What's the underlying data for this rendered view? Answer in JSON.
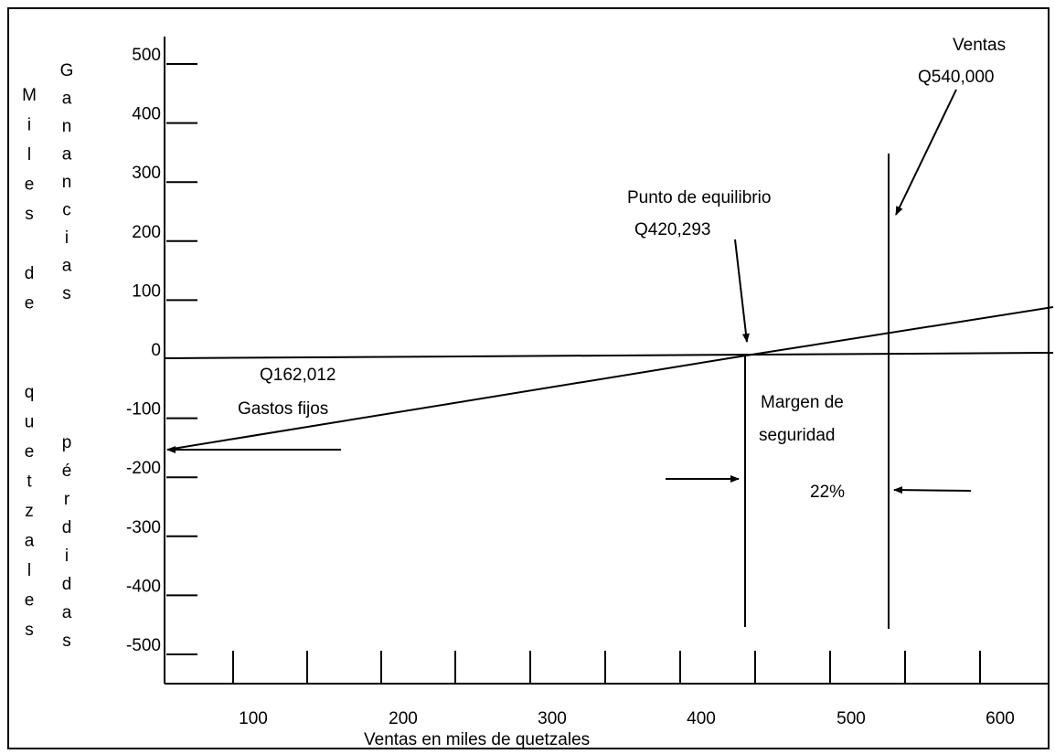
{
  "chart_data": {
    "type": "line",
    "title": "",
    "xlabel": "Ventas en miles de quetzales",
    "ylabel_outer": [
      "M",
      "i",
      "l",
      "e",
      "s",
      "",
      "d",
      "e",
      "",
      "",
      "q",
      "u",
      "e",
      "t",
      "z",
      "a",
      "l",
      "e",
      "s"
    ],
    "ylabel_inner_top": [
      "G",
      "a",
      "n",
      "a",
      "n",
      "c",
      "i",
      "a",
      "s"
    ],
    "ylabel_inner_bottom": [
      "p",
      "é",
      "r",
      "d",
      "i",
      "d",
      "a",
      "s"
    ],
    "x_tick_labels": [
      "100",
      "200",
      "300",
      "400",
      "500",
      "600"
    ],
    "y_tick_labels": [
      "500",
      "400",
      "300",
      "200",
      "100",
      "0",
      "-100",
      "-200",
      "-300",
      "-400",
      "-500"
    ],
    "y_ticks": [
      500,
      400,
      300,
      200,
      100,
      0,
      -100,
      -200,
      -300,
      -400,
      -500
    ],
    "xlim": [
      0,
      600
    ],
    "ylim": [
      -500,
      500
    ],
    "series": [
      {
        "x": [
          0,
          420.293,
          600
        ],
        "y": [
          -162.012,
          0,
          69.3
        ]
      }
    ],
    "reference_lines": {
      "breakeven_x": 420.293,
      "sales_x": 540
    },
    "annotations": {
      "ventas_title": "Ventas",
      "ventas_value": "Q540,000",
      "equilibrio_title": "Punto de equilibrio",
      "equilibrio_value": "Q420,293",
      "fijos_value": "Q162,012",
      "fijos_title": "Gastos fijos",
      "margen_line1": "Margen de",
      "margen_line2": "seguridad",
      "margen_pct": "22%"
    },
    "grid": false,
    "legend": "none"
  }
}
